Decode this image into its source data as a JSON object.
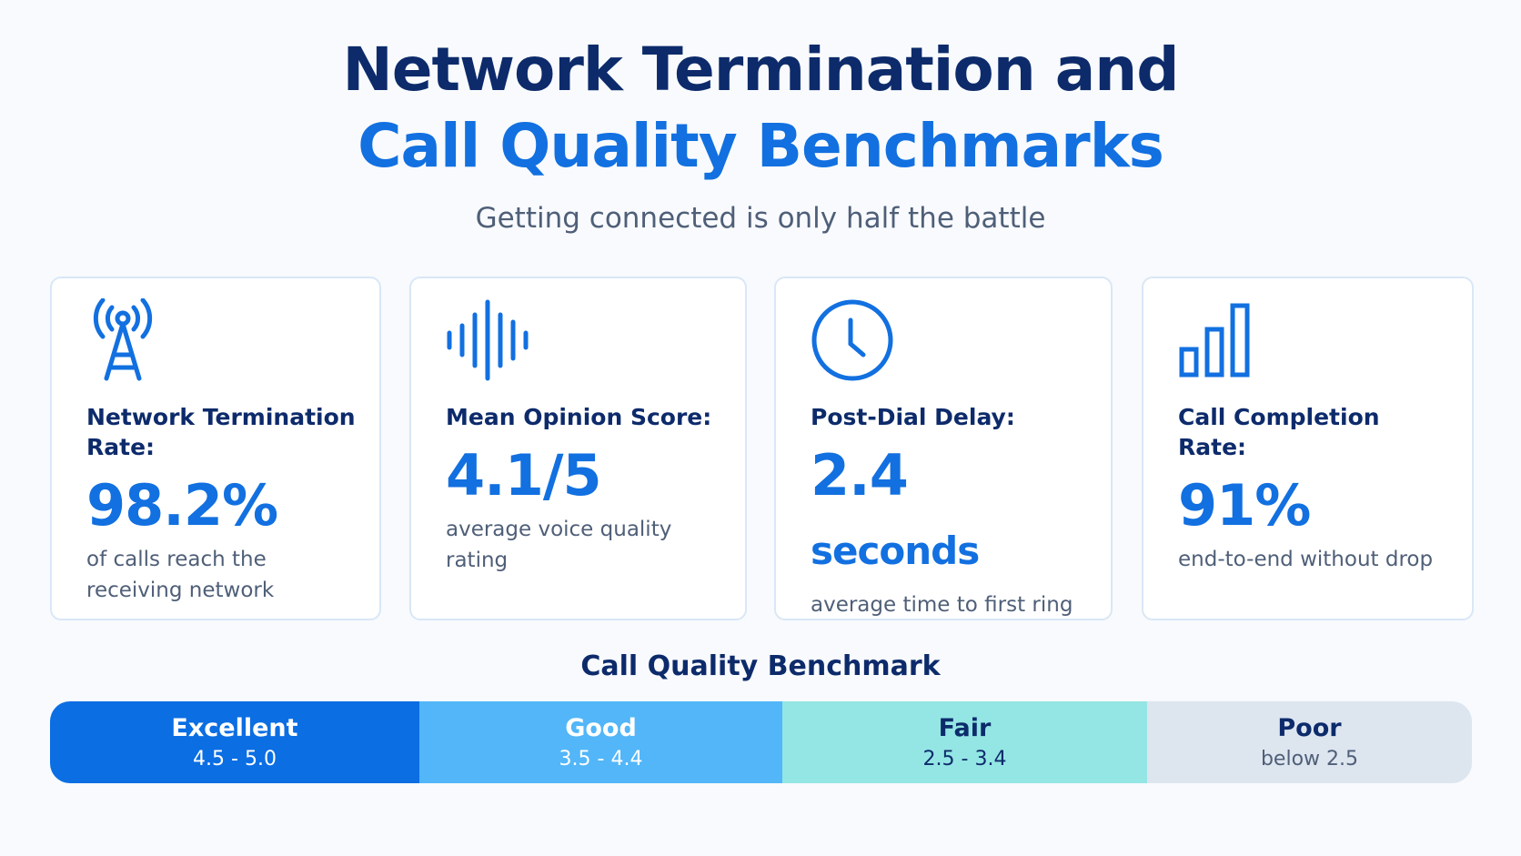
{
  "header": {
    "title_line1": "Network Termination and",
    "title_line2": "Call Quality Benchmarks",
    "subtitle": "Getting connected is only half the battle"
  },
  "cards": [
    {
      "label": "Network Termination Rate:",
      "value": "98.2%",
      "description": "of calls reach the receiving network"
    },
    {
      "label": "Mean Opinion Score:",
      "value": "4.1/5",
      "description": "average voice quality rating"
    },
    {
      "label": "Post-Dial Delay:",
      "value": "2.4",
      "unit": "seconds",
      "description": "average time to first ring"
    },
    {
      "label": "Call Completion Rate:",
      "value": "91%",
      "description": "end-to-end without drop"
    }
  ],
  "benchmark": {
    "title": "Call Quality Benchmark",
    "tiers": [
      {
        "name": "Excellent",
        "range": "4.5 - 5.0"
      },
      {
        "name": "Good",
        "range": "3.5 - 4.4"
      },
      {
        "name": "Fair",
        "range": "2.5 - 3.4"
      },
      {
        "name": "Poor",
        "range": "below 2.5"
      }
    ]
  }
}
